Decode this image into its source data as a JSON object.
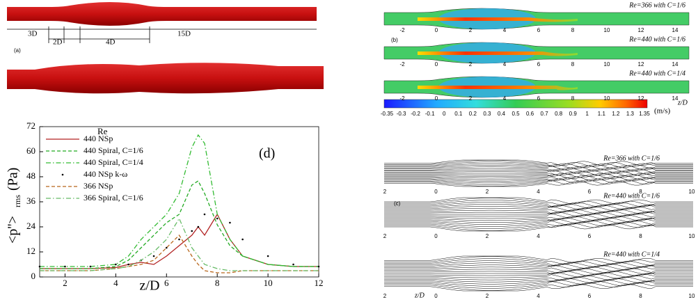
{
  "panel_a": {
    "label": "(a)",
    "dims": [
      "3D",
      "2D",
      "4D",
      "15D"
    ]
  },
  "panel_b": {
    "label": "(b)",
    "plots": [
      "Re=366 with C=1/6",
      "Re=440 with C=1/6",
      "Re=440 with C=1/4"
    ],
    "xticks": [
      "-2",
      "0",
      "2",
      "4",
      "6",
      "8",
      "10",
      "12",
      "14"
    ],
    "xlabel": "z/D",
    "colorbar_ticks": [
      "-0.35",
      "-0.3",
      "-0.2",
      "-0.1",
      "0",
      "0.1",
      "0.2",
      "0.3",
      "0.4",
      "0.5",
      "0.6",
      "0.7",
      "0.8",
      "0.9",
      "1",
      "1.1",
      "1.2",
      "1.3",
      "1.35"
    ],
    "colorbar_unit": "(m/s)"
  },
  "panel_c": {
    "label": "(c)",
    "plots": [
      "Re=366 with C=1/6",
      "Re=440 with C=1/6",
      "Re=440 with C=1/4"
    ],
    "xticks": [
      "2",
      "0",
      "2",
      "4",
      "6",
      "8",
      "10"
    ],
    "xlabel": "z/D"
  },
  "chart_data": {
    "type": "line",
    "annotation": "(d)",
    "legend_title": "Re",
    "xlabel": "z/D",
    "ylabel_main": "<p''>",
    "ylabel_sub": "rms",
    "ylabel_unit": "(Pa)",
    "x": [
      1,
      2,
      3,
      4,
      4.5,
      5,
      5.5,
      6,
      6.5,
      7,
      7.25,
      7.5,
      8,
      8.5,
      9,
      10,
      11,
      12
    ],
    "series": [
      {
        "name": "440 NSp",
        "color": "#b22222",
        "style": "solid",
        "values": [
          4,
          4,
          4,
          4.5,
          6,
          7,
          6,
          10,
          15,
          20,
          24,
          20,
          30,
          18,
          10,
          6,
          5,
          5
        ]
      },
      {
        "name": "440 Spiral, C=1/6",
        "color": "#22aa22",
        "style": "dashed",
        "values": [
          4,
          4,
          4,
          5,
          8,
          14,
          20,
          26,
          30,
          44,
          46,
          40,
          25,
          15,
          10,
          6,
          5,
          5
        ]
      },
      {
        "name": "440 Spiral, C=1/4",
        "color": "#33bb33",
        "style": "dashdot",
        "values": [
          5,
          5,
          5,
          6,
          10,
          18,
          24,
          30,
          40,
          62,
          68,
          64,
          30,
          18,
          10,
          6,
          5,
          5
        ]
      },
      {
        "name": "440 NSp  k-ω",
        "color": "#000000",
        "style": "dots",
        "values": [
          5,
          5,
          5,
          6,
          6,
          8,
          10,
          14,
          18,
          22,
          24,
          30,
          28,
          26,
          18,
          10,
          6,
          5
        ]
      },
      {
        "name": "366 NSp",
        "color": "#b8661a",
        "style": "dashed",
        "values": [
          3,
          3,
          3,
          4,
          5,
          6,
          8,
          14,
          20,
          10,
          6,
          3,
          2,
          2,
          3,
          3,
          3,
          3
        ]
      },
      {
        "name": "366 Spiral, C=1/6",
        "color": "#66bb66",
        "style": "dashdot",
        "values": [
          3,
          3,
          3,
          4,
          5,
          8,
          12,
          18,
          28,
          14,
          10,
          6,
          4,
          3,
          3,
          3,
          3,
          3
        ]
      }
    ],
    "xlim": [
      1,
      12
    ],
    "xticks": [
      2,
      4,
      6,
      8,
      10,
      12
    ],
    "ylim": [
      0,
      72
    ],
    "yticks": [
      0,
      12,
      24,
      36,
      48,
      60,
      72
    ]
  }
}
